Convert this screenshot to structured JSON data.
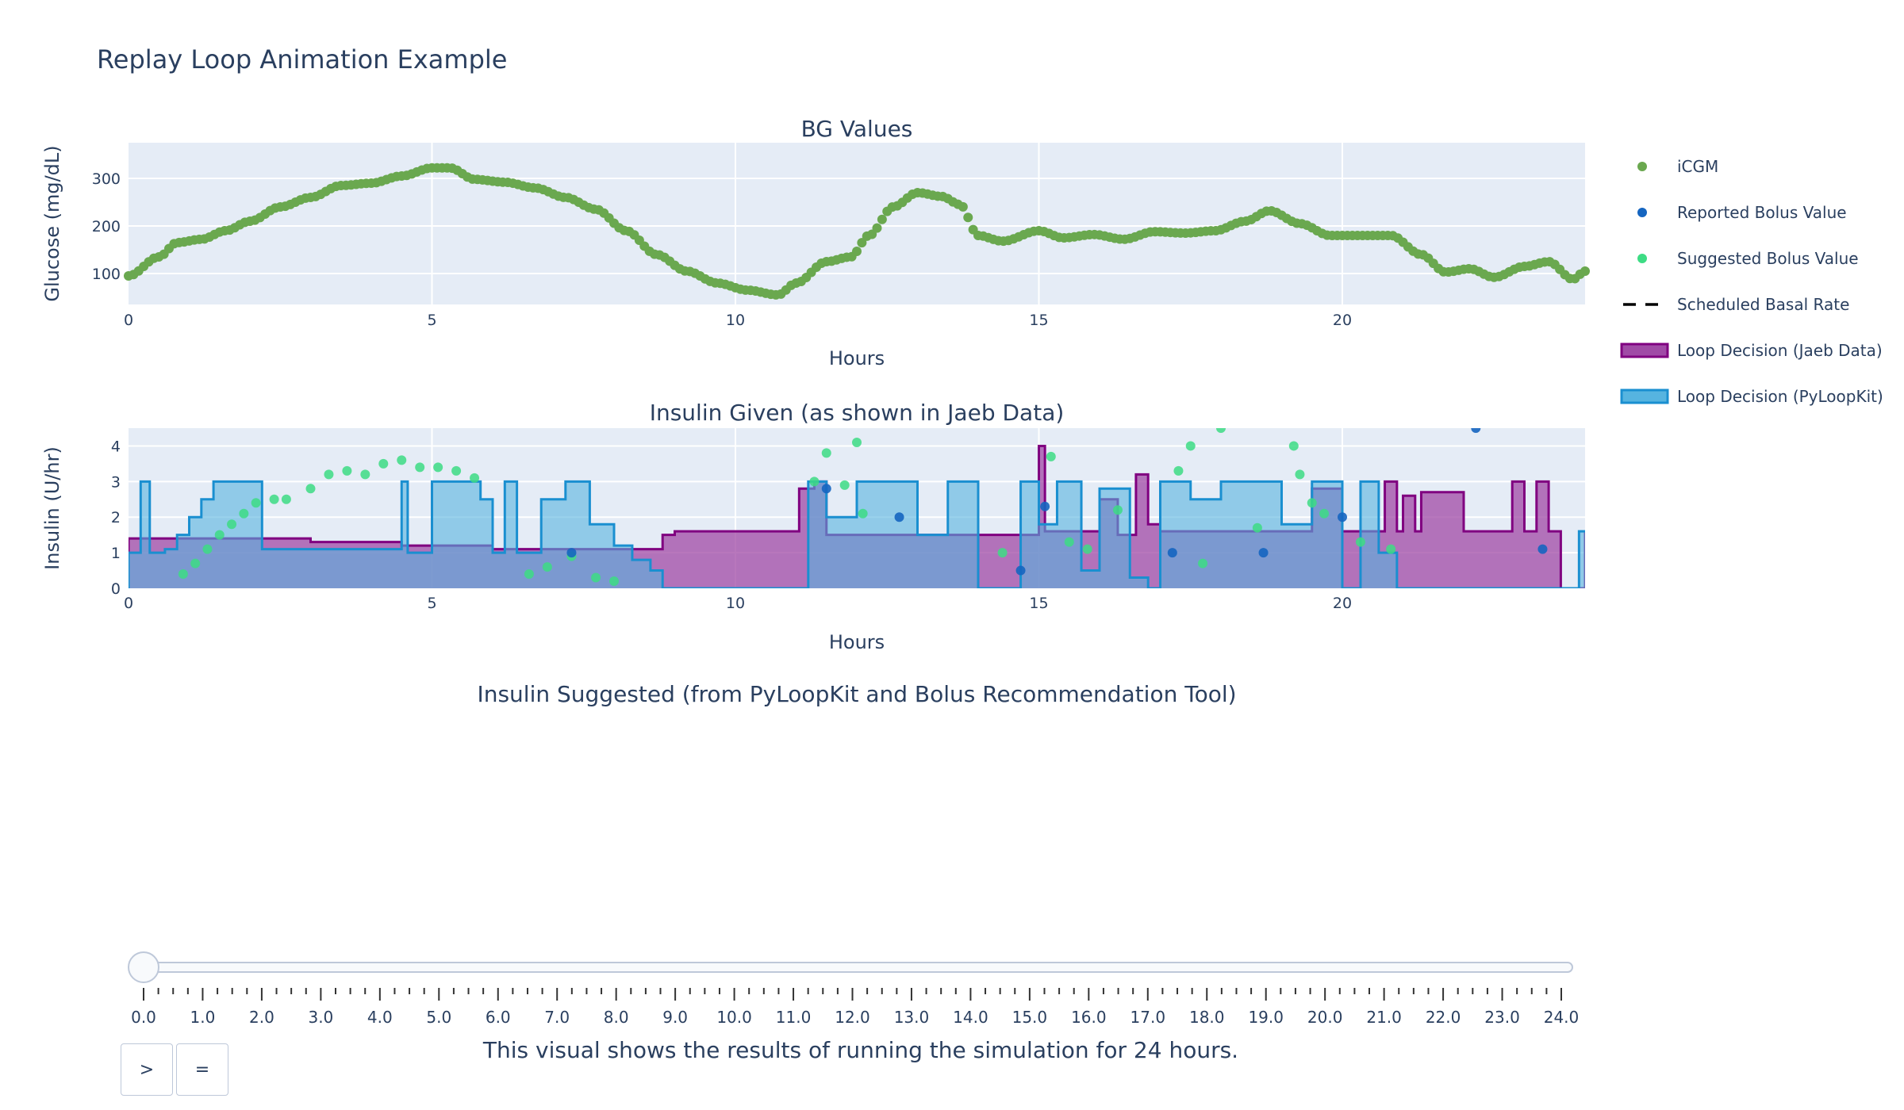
{
  "page": {
    "title": "Replay Loop Animation Example"
  },
  "controls": {
    "play_label": ">",
    "pause_label": "="
  },
  "caption": "This visual shows the results of running the simulation for 24 hours.",
  "slider": {
    "value": 0.0,
    "ticks": [
      "0.0",
      "1.0",
      "2.0",
      "3.0",
      "4.0",
      "5.0",
      "6.0",
      "7.0",
      "8.0",
      "9.0",
      "10.0",
      "11.0",
      "12.0",
      "13.0",
      "14.0",
      "15.0",
      "16.0",
      "17.0",
      "18.0",
      "19.0",
      "20.0",
      "21.0",
      "22.0",
      "23.0",
      "24.0"
    ]
  },
  "colors": {
    "icgm": "#6aa84f",
    "reported_bolus": "#1565c0",
    "suggested_bolus": "#3ddc84",
    "jaeb_line": "#800080",
    "jaeb_fill": "#a04aa6",
    "pyloopkit_line": "#1a8fd0",
    "pyloopkit_fill": "#56b4e0",
    "plot_bg": "#e5ecf6",
    "text": "#2a3f5f"
  },
  "legend": {
    "position": "right",
    "items": [
      {
        "key": "icgm",
        "label": "iCGM"
      },
      {
        "key": "reported_bolus",
        "label": "Reported Bolus Value"
      },
      {
        "key": "suggested_bolus",
        "label": "Suggested Bolus Value"
      },
      {
        "key": "scheduled_basal",
        "label": "Scheduled Basal Rate"
      },
      {
        "key": "jaeb",
        "label": "Loop Decision (Jaeb Data)"
      },
      {
        "key": "pyloopkit",
        "label": "Loop Decision (PyLoopKit)"
      }
    ]
  },
  "chart_data": [
    {
      "type": "scatter",
      "title": "BG Values",
      "xlabel": "Hours",
      "ylabel": "Glucose (mg/dL)",
      "xlim": [
        0,
        24
      ],
      "ylim": [
        35,
        375
      ],
      "x_ticks": [
        0,
        5,
        10,
        15,
        20
      ],
      "y_ticks": [
        100,
        200,
        300
      ],
      "grid": true,
      "series": [
        {
          "name": "iCGM",
          "knots": [
            [
              0,
              95
            ],
            [
              0.5,
              135
            ],
            [
              0.8,
              165
            ],
            [
              1.2,
              172
            ],
            [
              1.6,
              190
            ],
            [
              2,
              210
            ],
            [
              2.5,
              240
            ],
            [
              3,
              260
            ],
            [
              3.5,
              285
            ],
            [
              4,
              290
            ],
            [
              4.5,
              305
            ],
            [
              5,
              322
            ],
            [
              5.3,
              322
            ],
            [
              5.7,
              298
            ],
            [
              6.2,
              292
            ],
            [
              6.7,
              280
            ],
            [
              7.2,
              260
            ],
            [
              7.7,
              235
            ],
            [
              8.2,
              190
            ],
            [
              8.7,
              140
            ],
            [
              9.2,
              105
            ],
            [
              9.7,
              80
            ],
            [
              10.2,
              65
            ],
            [
              10.7,
              55
            ],
            [
              11,
              80
            ],
            [
              11.5,
              125
            ],
            [
              11.9,
              135
            ],
            [
              12.2,
              180
            ],
            [
              12.6,
              240
            ],
            [
              13,
              270
            ],
            [
              13.4,
              262
            ],
            [
              13.7,
              245
            ],
            [
              14,
              180
            ],
            [
              14.4,
              168
            ],
            [
              15,
              190
            ],
            [
              15.4,
              175
            ],
            [
              15.9,
              182
            ],
            [
              16.4,
              172
            ],
            [
              16.9,
              188
            ],
            [
              17.4,
              185
            ],
            [
              17.9,
              190
            ],
            [
              18.4,
              210
            ],
            [
              18.8,
              232
            ],
            [
              19.3,
              205
            ],
            [
              19.8,
              180
            ],
            [
              20.3,
              180
            ],
            [
              20.8,
              180
            ],
            [
              21.3,
              140
            ],
            [
              21.7,
              103
            ],
            [
              22.1,
              110
            ],
            [
              22.5,
              92
            ],
            [
              23,
              115
            ],
            [
              23.4,
              125
            ],
            [
              23.8,
              88
            ],
            [
              24,
              105
            ]
          ]
        }
      ]
    },
    {
      "type": "area",
      "title": "Insulin Given (as shown in Jaeb Data)",
      "xlabel": "Hours",
      "ylabel": "Insulin (U/hr)",
      "xlim": [
        0,
        24
      ],
      "ylim": [
        0,
        4.5
      ],
      "x_ticks": [
        0,
        5,
        10,
        15,
        20
      ],
      "y_ticks": [
        0,
        1,
        2,
        3,
        4
      ],
      "grid": true,
      "series": [
        {
          "name": "Loop Decision (Jaeb Data)",
          "step_x": [
            0,
            1.0,
            1.5,
            3.0,
            4.5,
            6.0,
            8.8,
            9.0,
            11.0,
            11.05,
            11.3,
            11.5,
            12.0,
            13.0,
            14.0,
            14.9,
            15.0,
            15.1,
            15.5,
            16.0,
            16.3,
            16.6,
            16.8,
            17.0,
            17.5,
            18.0,
            19.0,
            19.5,
            20.0,
            20.7,
            20.9,
            21.0,
            21.2,
            21.3,
            22.0,
            22.2,
            22.4,
            22.8,
            23.0,
            23.2,
            23.4,
            23.6,
            24
          ],
          "step_y": [
            1.4,
            1.4,
            1.4,
            1.3,
            1.2,
            1.1,
            1.5,
            1.6,
            1.6,
            2.8,
            3.0,
            1.5,
            1.5,
            1.5,
            1.5,
            1.5,
            4.0,
            1.6,
            1.6,
            2.5,
            1.5,
            3.2,
            1.8,
            1.6,
            1.6,
            1.6,
            1.6,
            2.8,
            1.6,
            3.0,
            1.6,
            2.6,
            1.6,
            2.7,
            1.6,
            1.6,
            1.6,
            3.0,
            1.6,
            3.0,
            1.6,
            0.0,
            1.6
          ]
        },
        {
          "name": "Loop Decision (PyLoopKit)",
          "step_x": [
            0,
            0.2,
            0.35,
            0.6,
            0.8,
            1.0,
            1.2,
            1.4,
            2.2,
            4.5,
            4.6,
            5.0,
            5.3,
            5.8,
            6.0,
            6.2,
            6.4,
            6.8,
            7.2,
            7.6,
            8.0,
            8.3,
            8.6,
            8.8,
            9.0,
            11.0,
            11.2,
            11.5,
            12.0,
            12.5,
            13.0,
            13.5,
            14.0,
            14.3,
            14.7,
            15.0,
            15.3,
            15.7,
            16.0,
            16.5,
            16.8,
            17.0,
            17.5,
            18.0,
            18.5,
            19.0,
            19.5,
            20.0,
            20.3,
            20.6,
            20.9,
            21.0,
            22.0,
            23.5,
            23.9,
            24
          ],
          "step_y": [
            1.0,
            3.0,
            1.0,
            1.1,
            1.5,
            2.0,
            2.5,
            3.0,
            1.1,
            3.0,
            1.0,
            3.0,
            3.0,
            2.5,
            1.0,
            3.0,
            1.0,
            2.5,
            3.0,
            1.8,
            1.2,
            0.8,
            0.5,
            0.0,
            0.0,
            0.0,
            3.0,
            2.0,
            3.0,
            3.0,
            1.5,
            3.0,
            0.0,
            0.0,
            3.0,
            1.8,
            3.0,
            0.5,
            2.8,
            0.3,
            0.0,
            3.0,
            2.5,
            3.0,
            3.0,
            1.8,
            3.0,
            0.0,
            3.0,
            1.0,
            0.0,
            0.0,
            0.0,
            0.0,
            1.6,
            1.6
          ]
        },
        {
          "name": "Suggested Bolus Value",
          "points": [
            [
              0.9,
              0.4
            ],
            [
              1.1,
              0.7
            ],
            [
              1.3,
              1.1
            ],
            [
              1.5,
              1.5
            ],
            [
              1.7,
              1.8
            ],
            [
              1.9,
              2.1
            ],
            [
              2.1,
              2.4
            ],
            [
              2.4,
              2.5
            ],
            [
              2.6,
              2.5
            ],
            [
              3.0,
              2.8
            ],
            [
              3.3,
              3.2
            ],
            [
              3.6,
              3.3
            ],
            [
              3.9,
              3.2
            ],
            [
              4.2,
              3.5
            ],
            [
              4.5,
              3.6
            ],
            [
              4.8,
              3.4
            ],
            [
              5.1,
              3.4
            ],
            [
              5.4,
              3.3
            ],
            [
              5.7,
              3.1
            ],
            [
              6.6,
              0.4
            ],
            [
              6.9,
              0.6
            ],
            [
              7.3,
              0.9
            ],
            [
              7.7,
              0.3
            ],
            [
              8.0,
              0.2
            ],
            [
              11.3,
              3.0
            ],
            [
              11.5,
              3.8
            ],
            [
              11.8,
              2.9
            ],
            [
              12.1,
              2.1
            ],
            [
              12.0,
              4.1
            ],
            [
              14.4,
              1.0
            ],
            [
              15.2,
              3.7
            ],
            [
              15.5,
              1.3
            ],
            [
              15.8,
              1.1
            ],
            [
              16.3,
              2.2
            ],
            [
              17.3,
              3.3
            ],
            [
              17.5,
              4.0
            ],
            [
              17.7,
              0.7
            ],
            [
              18.0,
              4.5
            ],
            [
              18.6,
              1.7
            ],
            [
              19.2,
              4.0
            ],
            [
              19.3,
              3.2
            ],
            [
              19.5,
              2.4
            ],
            [
              19.7,
              2.1
            ],
            [
              20.3,
              1.3
            ],
            [
              20.8,
              1.1
            ]
          ]
        },
        {
          "name": "Reported Bolus Value",
          "points": [
            [
              7.3,
              1.0
            ],
            [
              11.5,
              2.8
            ],
            [
              12.7,
              2.0
            ],
            [
              14.7,
              0.5
            ],
            [
              15.1,
              2.3
            ],
            [
              17.2,
              1.0
            ],
            [
              18.7,
              1.0
            ],
            [
              20.0,
              2.0
            ],
            [
              22.2,
              4.5
            ],
            [
              23.3,
              1.1
            ]
          ]
        }
      ]
    },
    {
      "type": "line",
      "title": "Insulin Suggested (from PyLoopKit and Bolus Recommendation Tool)",
      "series": []
    }
  ]
}
